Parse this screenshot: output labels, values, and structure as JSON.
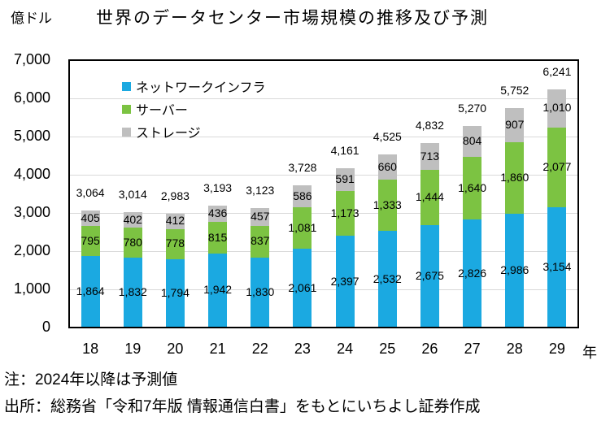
{
  "unit_label": "億ドル",
  "title": "世界のデータセンター市場規模の推移及び予測",
  "axis": {
    "x_suffix": "年"
  },
  "notes": {
    "note": "注：2024年以降は予測値",
    "source": "出所：総務省「令和7年版 情報通信白書」をもとにいちよし証券作成"
  },
  "chart_data": {
    "type": "bar",
    "stacked": true,
    "title": "世界のデータセンター市場規模の推移及び予測",
    "unit": "億ドル",
    "categories": [
      "18",
      "19",
      "20",
      "21",
      "22",
      "23",
      "24",
      "25",
      "26",
      "27",
      "28",
      "29"
    ],
    "x_axis_suffix": "年",
    "series": [
      {
        "name": "ネットワークインフラ",
        "color": "#1BA9E1",
        "values": [
          1864,
          1832,
          1794,
          1942,
          1830,
          2061,
          2397,
          2532,
          2675,
          2826,
          2986,
          3154
        ]
      },
      {
        "name": "サーバー",
        "color": "#7CC342",
        "values": [
          795,
          780,
          778,
          815,
          837,
          1081,
          1173,
          1333,
          1444,
          1640,
          1860,
          2077
        ]
      },
      {
        "name": "ストレージ",
        "color": "#BFBFBF",
        "values": [
          405,
          402,
          412,
          436,
          457,
          586,
          591,
          660,
          713,
          804,
          907,
          1010
        ]
      }
    ],
    "totals": [
      3064,
      3014,
      2983,
      3193,
      3123,
      3728,
      4161,
      4525,
      4832,
      5270,
      5752,
      6241
    ],
    "ylim": [
      0,
      7000
    ],
    "y_tick_step": 1000,
    "grid": true,
    "legend_position": "top-left-inside"
  }
}
